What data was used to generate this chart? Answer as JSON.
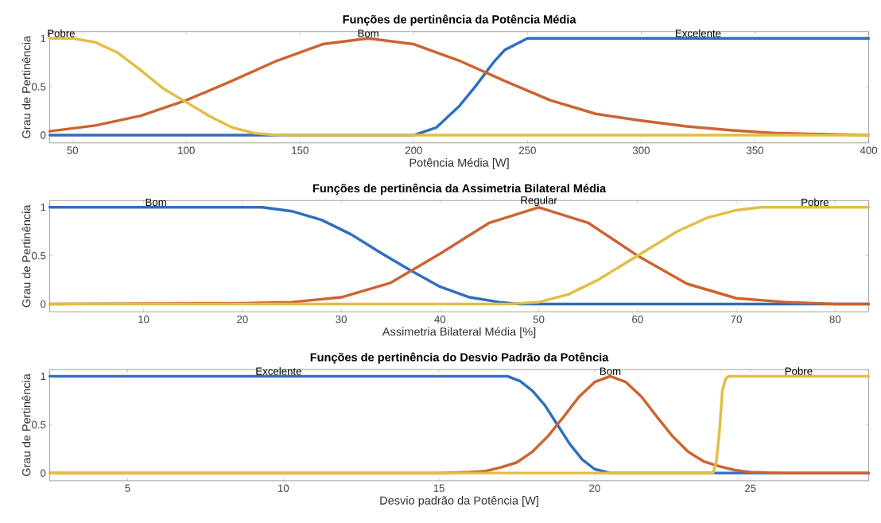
{
  "chart_data": [
    {
      "type": "line",
      "title": "Funções de pertinência da Potência Média",
      "xlabel": "Potência Média [W]",
      "ylabel": "Grau de Pertinência",
      "xlim": [
        40,
        400
      ],
      "ylim": [
        -0.08,
        1.07
      ],
      "xticks": [
        50,
        100,
        150,
        200,
        250,
        300,
        350,
        400
      ],
      "yticks": [
        0,
        0.5,
        1
      ],
      "marker": "none",
      "series": [
        {
          "name": "Excelente",
          "color": "#2f6fbf",
          "x": [
            40,
            200,
            210,
            220,
            227,
            235,
            240,
            250,
            400
          ],
          "values": [
            0,
            0,
            0.08,
            0.3,
            0.5,
            0.75,
            0.88,
            1,
            1
          ]
        },
        {
          "name": "Bom",
          "color": "#cc6430",
          "x": [
            40,
            60,
            80,
            100,
            120,
            140,
            160,
            180,
            200,
            220,
            240,
            260,
            280,
            300,
            320,
            340,
            360,
            380,
            400
          ],
          "values": [
            0.04,
            0.1,
            0.2,
            0.36,
            0.56,
            0.77,
            0.94,
            1,
            0.94,
            0.77,
            0.56,
            0.36,
            0.22,
            0.15,
            0.09,
            0.05,
            0.02,
            0.01,
            0
          ]
        },
        {
          "name": "Pobre",
          "color": "#e3bd45",
          "x": [
            40,
            50,
            60,
            70,
            80,
            90,
            100,
            110,
            120,
            130,
            140,
            400
          ],
          "values": [
            1,
            1,
            0.96,
            0.85,
            0.67,
            0.48,
            0.34,
            0.2,
            0.08,
            0.02,
            0,
            0
          ]
        }
      ]
    },
    {
      "type": "line",
      "title": "Funções de pertinência da Assimetria Bilateral Média",
      "xlabel": "Assimetria Bilateral Média [%]",
      "ylabel": "Grau de Pertinência",
      "xlim": [
        0.5,
        83.4
      ],
      "ylim": [
        -0.08,
        1.07
      ],
      "xticks": [
        10,
        20,
        30,
        40,
        50,
        60,
        70,
        80
      ],
      "yticks": [
        0,
        0.5,
        1
      ],
      "marker": "none",
      "series": [
        {
          "name": "Bom",
          "color": "#2f6fbf",
          "x": [
            0.5,
            22,
            25,
            28,
            31,
            34,
            37,
            40,
            43,
            46,
            48,
            83.4
          ],
          "values": [
            1,
            1,
            0.96,
            0.87,
            0.72,
            0.53,
            0.35,
            0.18,
            0.07,
            0.02,
            0,
            0
          ]
        },
        {
          "name": "Regular",
          "color": "#cc6430",
          "x": [
            0.5,
            20,
            25,
            30,
            35,
            40,
            45,
            50,
            55,
            60,
            65,
            70,
            75,
            80,
            83.4
          ],
          "values": [
            0,
            0.01,
            0.02,
            0.07,
            0.22,
            0.52,
            0.84,
            1,
            0.84,
            0.5,
            0.21,
            0.06,
            0.02,
            0,
            0
          ]
        },
        {
          "name": "Pobre",
          "color": "#e3bd45",
          "x": [
            0.5,
            47,
            50,
            53,
            56,
            60,
            64,
            67,
            70,
            72.5,
            83.4
          ],
          "values": [
            0,
            0,
            0.02,
            0.1,
            0.25,
            0.5,
            0.75,
            0.89,
            0.97,
            1,
            1
          ]
        }
      ]
    },
    {
      "type": "line",
      "title": "Funções de pertinência do Desvio Padrão da Potência",
      "xlabel": "Desvio padrão da Potência [W]",
      "ylabel": "Grau de Pertinência",
      "xlim": [
        2.5,
        28.8
      ],
      "ylim": [
        -0.08,
        1.07
      ],
      "xticks": [
        5,
        10,
        15,
        20,
        25
      ],
      "yticks": [
        0,
        0.5,
        1
      ],
      "marker": "none",
      "series": [
        {
          "name": "Excelente",
          "color": "#2f6fbf",
          "x": [
            2.5,
            17.2,
            17.6,
            18,
            18.4,
            18.8,
            19.2,
            19.6,
            20,
            20.5,
            28.8
          ],
          "values": [
            1,
            1,
            0.95,
            0.85,
            0.7,
            0.5,
            0.3,
            0.14,
            0.04,
            0,
            0
          ]
        },
        {
          "name": "Bom",
          "color": "#cc6430",
          "x": [
            2.5,
            15,
            16,
            16.5,
            17,
            17.5,
            18,
            18.5,
            19,
            19.5,
            20,
            20.5,
            21,
            21.5,
            22,
            22.5,
            23,
            23.5,
            24,
            24.5,
            25,
            26,
            28.8
          ],
          "values": [
            0,
            0,
            0.01,
            0.02,
            0.06,
            0.11,
            0.22,
            0.38,
            0.58,
            0.79,
            0.94,
            1,
            0.94,
            0.79,
            0.58,
            0.38,
            0.22,
            0.12,
            0.07,
            0.03,
            0.01,
            0,
            0
          ]
        },
        {
          "name": "Pobre",
          "color": "#e3bd45",
          "x": [
            2.5,
            23.8,
            23.9,
            24,
            24.1,
            24.2,
            24.3,
            28.8
          ],
          "values": [
            0,
            0,
            0.1,
            0.4,
            0.85,
            0.97,
            1,
            1
          ]
        }
      ]
    }
  ]
}
